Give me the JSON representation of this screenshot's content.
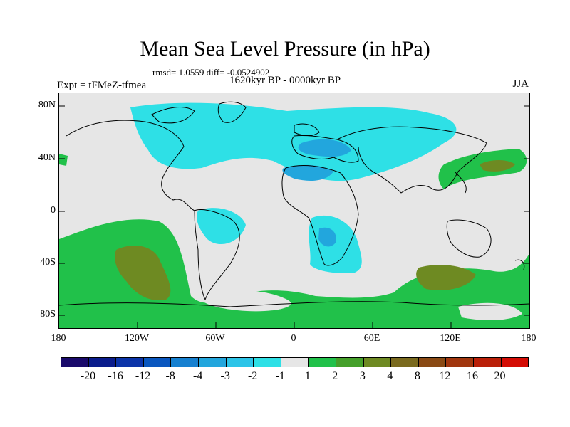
{
  "header": {
    "title": "Mean Sea Level Pressure (in hPa)",
    "stats": "rmsd= 1.0559 diff= -0.0524902",
    "experiment": "Expt = tFMeZ-tfmea",
    "period": "1620kyr BP - 0000kyr BP",
    "season": "JJA"
  },
  "axes": {
    "lat_labels": [
      "80N",
      "40N",
      "0",
      "40S",
      "80S"
    ],
    "lon_labels": [
      "180",
      "120W",
      "60W",
      "0",
      "60E",
      "120E",
      "180"
    ]
  },
  "legend": {
    "colors": [
      "#1a0a6b",
      "#0a1c8c",
      "#0b34a8",
      "#0a57bf",
      "#1680d0",
      "#22a6dd",
      "#2cc4e8",
      "#2ee0e6",
      "#e6e6e6",
      "#21c14a",
      "#45a02a",
      "#6e8a22",
      "#7a6a1e",
      "#8a4a14",
      "#a1360e",
      "#ba1f08",
      "#d40c04"
    ],
    "labels": [
      "-20",
      "-16",
      "-12",
      "-8",
      "-4",
      "-3",
      "-2",
      "-1",
      "1",
      "2",
      "3",
      "4",
      "8",
      "12",
      "16",
      "20"
    ]
  },
  "fill_colors": {
    "neg1": "#2ee0e6",
    "neg2": "#22a6dd",
    "pos2": "#21c14a",
    "pos3": "#6e8a22"
  }
}
